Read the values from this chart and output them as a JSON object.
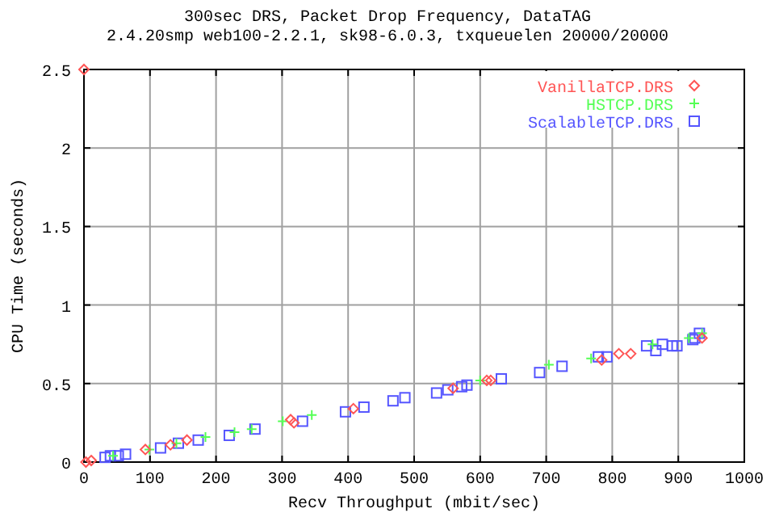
{
  "chart_data": {
    "type": "scatter",
    "title": "300sec DRS, Packet Drop Frequency, DataTAG",
    "subtitle": "2.4.20smp web100-2.2.1, sk98-6.0.3, txqueuelen 20000/20000",
    "xlabel": "Recv Throughput (mbit/sec)",
    "ylabel": "CPU Time (seconds)",
    "xlim": [
      0,
      1000
    ],
    "ylim": [
      0,
      2.5
    ],
    "xticks": [
      0,
      100,
      200,
      300,
      400,
      500,
      600,
      700,
      800,
      900,
      1000
    ],
    "yticks": [
      0,
      0.5,
      1,
      1.5,
      2,
      2.5
    ],
    "grid": true,
    "legend": "top right",
    "series": [
      {
        "name": "VanillaTCP.DRS",
        "color": "#ff5555",
        "marker": "diamond",
        "x": [
          0,
          3,
          11,
          93,
          131,
          156,
          313,
          318,
          408,
          559,
          610,
          616,
          784,
          810,
          828,
          936
        ],
        "values": [
          2.5,
          0,
          0.01,
          0.08,
          0.11,
          0.14,
          0.27,
          0.25,
          0.34,
          0.47,
          0.52,
          0.52,
          0.65,
          0.69,
          0.69,
          0.79
        ]
      },
      {
        "name": "HSTCP.DRS",
        "color": "#55ff55",
        "marker": "cross",
        "x": [
          44,
          99,
          140,
          184,
          228,
          254,
          301,
          345,
          600,
          704,
          768,
          861,
          916,
          936
        ],
        "values": [
          0.04,
          0.08,
          0.12,
          0.16,
          0.19,
          0.21,
          0.26,
          0.3,
          0.52,
          0.62,
          0.66,
          0.75,
          0.79,
          0.82
        ]
      },
      {
        "name": "ScalableTCP.DRS",
        "color": "#5555ff",
        "marker": "square",
        "x": [
          32,
          40,
          52,
          63,
          116,
          143,
          173,
          220,
          259,
          331,
          396,
          424,
          468,
          486,
          534,
          551,
          572,
          580,
          632,
          690,
          724,
          779,
          792,
          852,
          866,
          876,
          891,
          898,
          922,
          925,
          932
        ],
        "values": [
          0.03,
          0.04,
          0.04,
          0.05,
          0.09,
          0.12,
          0.14,
          0.17,
          0.21,
          0.26,
          0.32,
          0.35,
          0.39,
          0.41,
          0.44,
          0.46,
          0.48,
          0.49,
          0.53,
          0.57,
          0.61,
          0.67,
          0.67,
          0.74,
          0.71,
          0.75,
          0.74,
          0.74,
          0.78,
          0.79,
          0.82
        ]
      }
    ]
  }
}
